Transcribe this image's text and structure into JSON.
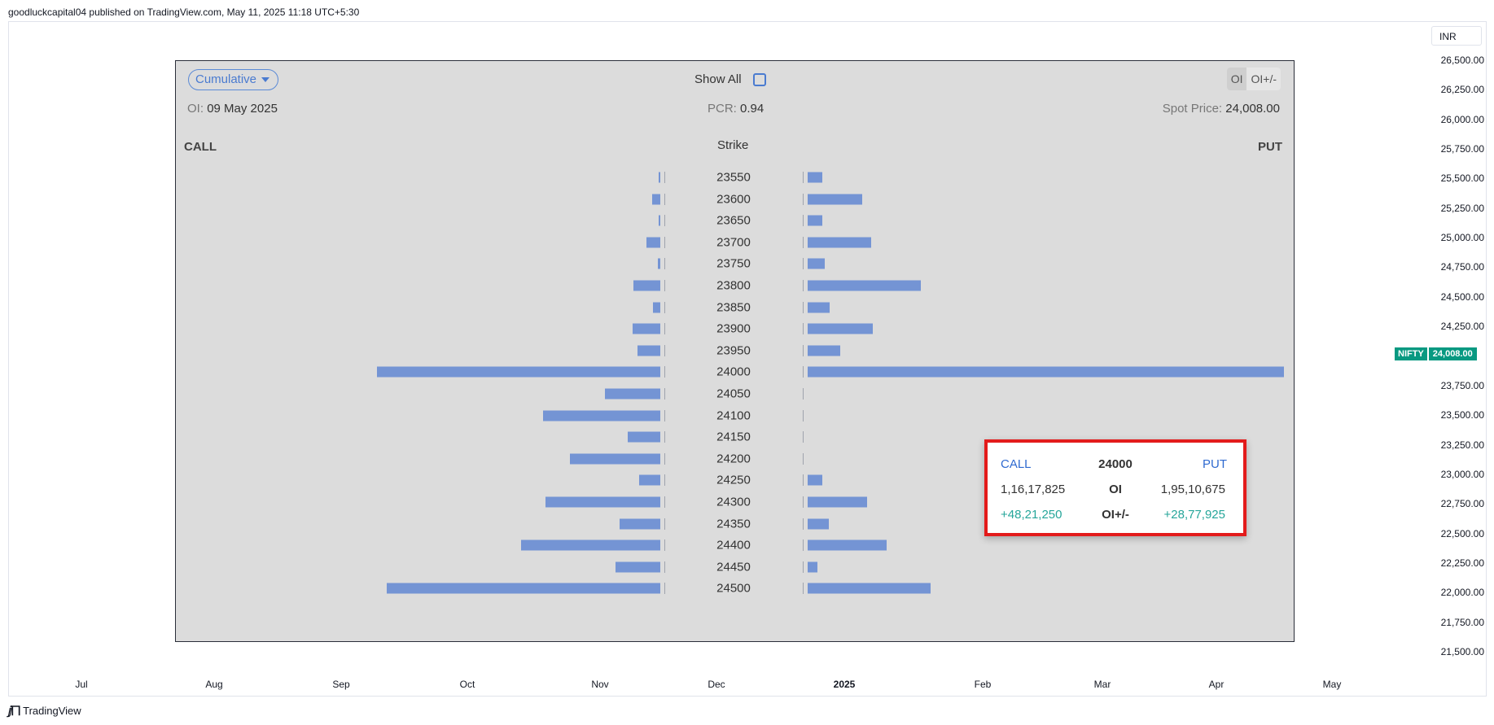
{
  "publisher_line": "goodluckcapital04 published on TradingView.com, May 11, 2025 11:18 UTC+5:30",
  "currency": "INR",
  "price_axis": [
    "26,500.00",
    "26,250.00",
    "26,000.00",
    "25,750.00",
    "25,500.00",
    "25,250.00",
    "25,000.00",
    "24,750.00",
    "24,500.00",
    "24,250.00",
    "23,750.00",
    "23,500.00",
    "23,250.00",
    "23,000.00",
    "22,750.00",
    "22,500.00",
    "22,250.00",
    "22,000.00",
    "21,750.00",
    "21,500.00"
  ],
  "last_price": {
    "symbol": "NIFTY",
    "price": "24,008.00",
    "color": "#089981"
  },
  "time_axis": [
    {
      "label": "Jul",
      "bold": false
    },
    {
      "label": "Aug",
      "bold": false
    },
    {
      "label": "Sep",
      "bold": false
    },
    {
      "label": "Oct",
      "bold": false
    },
    {
      "label": "Nov",
      "bold": false
    },
    {
      "label": "Dec",
      "bold": false
    },
    {
      "label": "2025",
      "bold": true
    },
    {
      "label": "Feb",
      "bold": false
    },
    {
      "label": "Mar",
      "bold": false
    },
    {
      "label": "Apr",
      "bold": false
    },
    {
      "label": "May",
      "bold": false
    }
  ],
  "logo_text": "TradingView",
  "widget": {
    "mode_dropdown": "Cumulative",
    "show_all_label": "Show All",
    "toggle": {
      "oi": "OI",
      "oi_change": "OI+/-"
    },
    "oi_label": "OI:",
    "oi_date": "09 May 2025",
    "pcr_label": "PCR:",
    "pcr_value": "0.94",
    "spot_label": "Spot Price:",
    "spot_value": "24,008.00",
    "call_header": "CALL",
    "strike_header": "Strike",
    "put_header": "PUT",
    "bar_color": "#7494d4"
  },
  "chart_data": {
    "type": "bar",
    "categories": [
      "23550",
      "23600",
      "23650",
      "23700",
      "23750",
      "23800",
      "23850",
      "23900",
      "23950",
      "24000",
      "24050",
      "24100",
      "24150",
      "24200",
      "24250",
      "24300",
      "24350",
      "24400",
      "24450",
      "24500"
    ],
    "series": [
      {
        "name": "CALL",
        "values": [
          0.006,
          0.03,
          0.006,
          0.05,
          0.008,
          0.095,
          0.025,
          0.097,
          0.08,
          1.0,
          0.195,
          0.415,
          0.115,
          0.32,
          0.075,
          0.405,
          0.145,
          0.49,
          0.158,
          0.965
        ]
      },
      {
        "name": "PUT",
        "values": [
          0.03,
          0.115,
          0.03,
          0.133,
          0.036,
          0.237,
          0.047,
          0.137,
          0.069,
          1.0,
          0.0,
          0.0,
          0.0,
          0.0,
          0.03,
          0.125,
          0.045,
          0.166,
          0.021,
          0.258
        ]
      }
    ]
  },
  "tooltip": {
    "call_label": "CALL",
    "strike": "24000",
    "put_label": "PUT",
    "oi_label": "OI",
    "call_oi": "1,16,17,825",
    "put_oi": "1,95,10,675",
    "chg_label": "OI+/-",
    "call_chg": "+48,21,250",
    "put_chg": "+28,77,925"
  }
}
